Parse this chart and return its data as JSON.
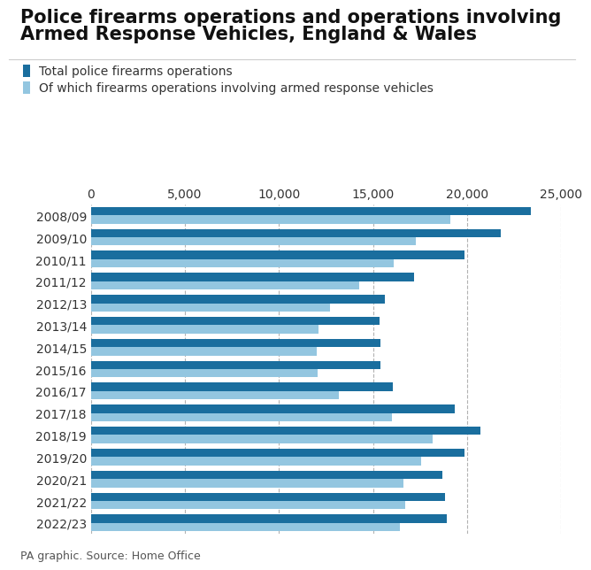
{
  "title_line1": "Police firearms operations and operations involving",
  "title_line2": "Armed Response Vehicles, England & Wales",
  "legend_total": "Total police firearms operations",
  "legend_arv": "Of which firearms operations involving armed response vehicles",
  "source": "PA graphic. Source: Home Office",
  "years": [
    "2008/09",
    "2009/10",
    "2010/11",
    "2011/12",
    "2012/13",
    "2013/14",
    "2014/15",
    "2015/16",
    "2016/17",
    "2017/18",
    "2018/19",
    "2019/20",
    "2020/21",
    "2021/22",
    "2022/23"
  ],
  "total_operations": [
    23400,
    21796,
    19870,
    17209,
    15621,
    15341,
    15396,
    15387,
    16042,
    19362,
    20710,
    19869,
    18714,
    18822,
    18913
  ],
  "arv_operations": [
    19100,
    17268,
    16117,
    14268,
    12696,
    12116,
    12032,
    12049,
    13190,
    16007,
    18166,
    17572,
    16621,
    16713,
    16424
  ],
  "color_total": "#1a6e9e",
  "color_arv": "#93c6e0",
  "background_color": "#ffffff",
  "xlim": [
    0,
    25000
  ],
  "xticks": [
    0,
    5000,
    10000,
    15000,
    20000,
    25000
  ],
  "xtick_labels": [
    "0",
    "5,000",
    "10,000",
    "15,000",
    "20,000",
    "25,000"
  ],
  "title_fontsize": 15,
  "axis_fontsize": 10,
  "legend_fontsize": 10,
  "source_fontsize": 9,
  "bar_height": 0.38,
  "grid_color": "#aaaaaa",
  "title_color": "#111111",
  "label_color": "#333333"
}
